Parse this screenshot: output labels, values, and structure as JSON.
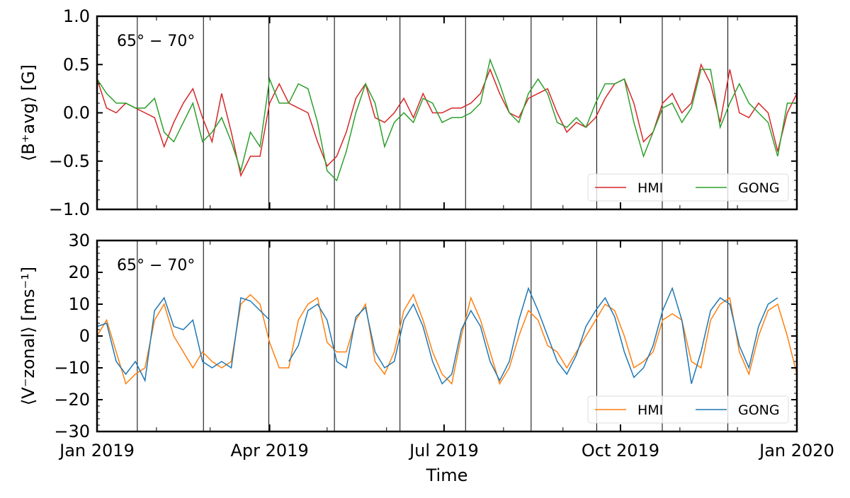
{
  "chart_data": [
    {
      "type": "line",
      "annotation": "65° − 70°",
      "ylabel": "⟨B⁺avg⟩ [G]",
      "ylim": [
        -1.0,
        1.0
      ],
      "yticks": [
        "1.0",
        "0.5",
        "0.0",
        "−0.5",
        "−1.0"
      ],
      "ytick_values": [
        1.0,
        0.5,
        0.0,
        -0.5,
        -1.0
      ],
      "legend_position": "lower-right",
      "x_days": [
        0,
        5,
        10,
        15,
        20,
        25,
        30,
        35,
        40,
        45,
        50,
        55,
        60,
        65,
        70,
        75,
        80,
        85,
        90,
        95,
        100,
        105,
        110,
        115,
        120,
        125,
        130,
        135,
        140,
        145,
        150,
        155,
        160,
        165,
        170,
        175,
        180,
        185,
        190,
        195,
        200,
        205,
        210,
        215,
        220,
        225,
        230,
        235,
        240,
        245,
        250,
        255,
        260,
        265,
        270,
        275,
        280,
        285,
        290,
        295,
        300,
        305,
        310,
        315,
        320,
        325,
        330,
        335,
        340,
        345,
        350,
        355,
        360,
        365
      ],
      "series": [
        {
          "name": "HMI",
          "color": "#d62728",
          "values": [
            0.35,
            0.05,
            0.0,
            0.1,
            0.05,
            0.0,
            -0.05,
            -0.35,
            -0.1,
            0.1,
            0.25,
            -0.05,
            -0.3,
            0.2,
            -0.2,
            -0.65,
            -0.45,
            -0.45,
            0.1,
            0.3,
            0.1,
            0.05,
            0.0,
            -0.3,
            -0.55,
            -0.45,
            -0.2,
            0.15,
            0.3,
            -0.05,
            -0.1,
            0.0,
            0.15,
            -0.05,
            0.2,
            0.0,
            0.0,
            0.05,
            0.05,
            0.1,
            0.2,
            0.45,
            0.2,
            0.0,
            -0.05,
            0.15,
            0.2,
            0.25,
            0.0,
            -0.2,
            -0.1,
            -0.15,
            -0.05,
            0.15,
            0.3,
            0.35,
            0.1,
            -0.3,
            -0.2,
            0.1,
            0.2,
            0.0,
            0.1,
            0.5,
            0.3,
            -0.1,
            0.45,
            0.0,
            -0.05,
            0.1,
            0.0,
            -0.4,
            0.0,
            0.2
          ]
        },
        {
          "name": "GONG",
          "color": "#2ca02c",
          "values": [
            0.35,
            0.2,
            0.1,
            0.1,
            0.05,
            0.05,
            0.15,
            -0.2,
            -0.3,
            -0.1,
            0.1,
            -0.3,
            -0.2,
            -0.05,
            -0.3,
            -0.6,
            -0.2,
            -0.35,
            0.35,
            0.1,
            0.1,
            0.3,
            0.25,
            -0.1,
            -0.6,
            -0.7,
            -0.4,
            0.0,
            0.3,
            0.1,
            -0.35,
            -0.1,
            0.0,
            -0.1,
            0.15,
            0.1,
            -0.1,
            -0.05,
            -0.05,
            0.0,
            0.1,
            0.55,
            0.3,
            0.0,
            -0.1,
            0.2,
            0.35,
            0.2,
            -0.1,
            -0.15,
            -0.05,
            -0.15,
            0.1,
            0.3,
            0.3,
            0.35,
            -0.1,
            -0.45,
            -0.2,
            0.05,
            0.1,
            -0.1,
            0.05,
            0.45,
            0.45,
            -0.15,
            0.1,
            0.3,
            0.1,
            0.0,
            -0.1,
            -0.45,
            0.1,
            0.1
          ]
        }
      ]
    },
    {
      "type": "line",
      "annotation": "65° − 70°",
      "ylabel": "⟨V⁻zonal⟩ [ms⁻¹]",
      "xlabel": "Time",
      "ylim": [
        -30,
        30
      ],
      "yticks": [
        "30",
        "20",
        "10",
        "0",
        "−10",
        "−20",
        "−30"
      ],
      "ytick_values": [
        30,
        20,
        10,
        0,
        -10,
        -20,
        -30
      ],
      "xtick_labels": [
        "Jan 2019",
        "Apr 2019",
        "Jul 2019",
        "Oct 2019",
        "Jan 2020"
      ],
      "xtick_days": [
        0,
        90,
        181,
        273,
        365
      ],
      "legend_position": "lower-right",
      "x_days": [
        0,
        5,
        10,
        15,
        20,
        25,
        30,
        35,
        40,
        45,
        50,
        55,
        60,
        65,
        70,
        75,
        80,
        85,
        90,
        95,
        100,
        105,
        110,
        115,
        120,
        125,
        130,
        135,
        140,
        145,
        150,
        155,
        160,
        165,
        170,
        175,
        180,
        185,
        190,
        195,
        200,
        205,
        210,
        215,
        220,
        225,
        230,
        235,
        240,
        245,
        250,
        255,
        260,
        265,
        270,
        275,
        280,
        285,
        290,
        295,
        300,
        305,
        310,
        315,
        320,
        325,
        330,
        335,
        340,
        345,
        350,
        355,
        360,
        365
      ],
      "series": [
        {
          "name": "HMI",
          "color": "#ff7f0e",
          "values": [
            0,
            5,
            -5,
            -15,
            -12,
            -10,
            5,
            10,
            0,
            -5,
            -10,
            -5,
            -8,
            -10,
            -8,
            10,
            13,
            10,
            -2,
            -10,
            -10,
            5,
            10,
            12,
            -2,
            -5,
            -5,
            5,
            10,
            -8,
            -12,
            -5,
            8,
            13,
            5,
            -5,
            -12,
            -15,
            0,
            12,
            5,
            -5,
            -15,
            -10,
            0,
            8,
            5,
            -3,
            -5,
            -10,
            -5,
            0,
            5,
            10,
            8,
            0,
            -10,
            -8,
            -5,
            5,
            7,
            5,
            -8,
            -10,
            5,
            10,
            12,
            -5,
            -12,
            0,
            8,
            10,
            0,
            -12
          ]
        },
        {
          "name": "GONG",
          "color": "#1f77b4",
          "values": [
            3,
            4,
            -8,
            -12,
            -8,
            -14,
            8,
            12,
            3,
            2,
            5,
            -8,
            -10,
            -8,
            -10,
            12,
            11,
            8,
            5,
            null,
            -8,
            -3,
            8,
            10,
            5,
            -8,
            -10,
            6,
            9,
            -5,
            -10,
            -8,
            5,
            10,
            3,
            -8,
            -15,
            -12,
            2,
            8,
            3,
            -8,
            -14,
            -8,
            5,
            15,
            8,
            0,
            -8,
            -12,
            -6,
            3,
            8,
            12,
            6,
            -5,
            -13,
            -10,
            -3,
            8,
            15,
            5,
            -15,
            -5,
            8,
            12,
            10,
            -3,
            -10,
            3,
            10,
            12,
            null,
            -6
          ]
        }
      ]
    }
  ],
  "carrington_rotation_days": [
    21,
    55.5,
    89.6,
    123.8,
    158,
    192.2,
    226.4,
    260.6,
    294.8,
    329
  ]
}
